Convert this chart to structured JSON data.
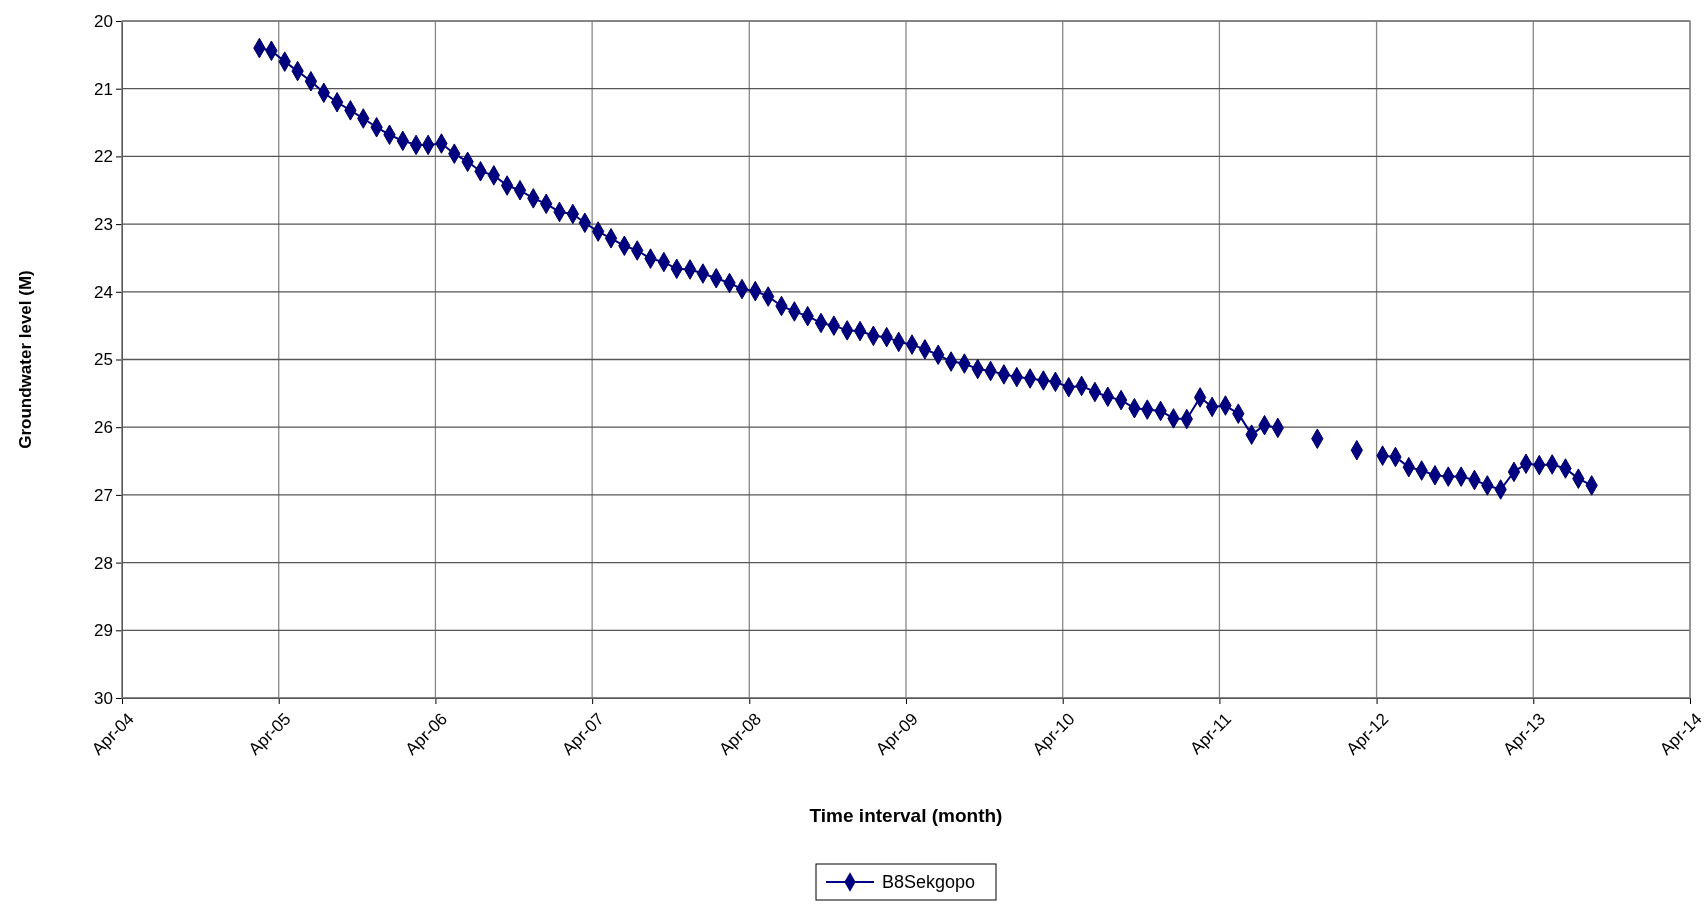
{
  "chart_data": {
    "type": "line",
    "xlabel": "Time interval (month)",
    "ylabel": "Groundwater level (M)",
    "x": [
      "2005-02-15",
      "2005-03-15",
      "2005-04-15",
      "2005-05-15",
      "2005-06-15",
      "2005-07-15",
      "2005-08-15",
      "2005-09-15",
      "2005-10-15",
      "2005-11-15",
      "2005-12-15",
      "2006-01-15",
      "2006-02-15",
      "2006-03-15",
      "2006-04-15",
      "2006-05-15",
      "2006-06-15",
      "2006-07-15",
      "2006-08-15",
      "2006-09-15",
      "2006-10-15",
      "2006-11-15",
      "2006-12-15",
      "2007-01-15",
      "2007-02-15",
      "2007-03-15",
      "2007-04-15",
      "2007-05-15",
      "2007-06-15",
      "2007-07-15",
      "2007-08-15",
      "2007-09-15",
      "2007-10-15",
      "2007-11-15",
      "2007-12-15",
      "2008-01-15",
      "2008-02-15",
      "2008-03-15",
      "2008-04-15",
      "2008-05-15",
      "2008-06-15",
      "2008-07-15",
      "2008-08-15",
      "2008-09-15",
      "2008-10-15",
      "2008-11-15",
      "2008-12-15",
      "2009-01-15",
      "2009-02-15",
      "2009-03-15",
      "2009-04-15",
      "2009-05-15",
      "2009-06-15",
      "2009-07-15",
      "2009-08-15",
      "2009-09-15",
      "2009-10-15",
      "2009-11-15",
      "2009-12-15",
      "2010-01-15",
      "2010-02-15",
      "2010-03-15",
      "2010-04-15",
      "2010-05-15",
      "2010-06-15",
      "2010-07-15",
      "2010-08-15",
      "2010-09-15",
      "2010-10-15",
      "2010-11-15",
      "2010-12-15",
      "2011-01-15",
      "2011-02-15",
      "2011-03-15",
      "2011-04-15",
      "2011-05-15",
      "2011-06-15",
      "2011-07-15",
      "2011-08-15",
      "2011-09-15",
      "2011-10-15",
      "2011-11-15",
      "2011-12-15",
      "2012-01-15",
      "2012-02-15",
      "2012-03-15",
      "2012-04-15",
      "2012-05-15",
      "2012-06-15",
      "2012-07-15",
      "2012-08-15",
      "2012-09-15",
      "2012-10-15",
      "2012-11-15",
      "2012-12-15",
      "2013-01-15",
      "2013-02-15",
      "2013-03-15",
      "2013-04-15",
      "2013-05-15",
      "2013-06-15",
      "2013-07-15",
      "2013-08-15"
    ],
    "series": [
      {
        "name": "B8Sekgopo",
        "color": "#000080",
        "values": [
          20.4,
          20.44,
          20.6,
          20.74,
          20.89,
          21.06,
          21.2,
          21.32,
          21.44,
          21.57,
          21.68,
          21.77,
          21.83,
          21.83,
          21.81,
          21.96,
          22.08,
          22.22,
          22.28,
          22.43,
          22.5,
          22.62,
          22.7,
          22.82,
          22.85,
          22.98,
          23.11,
          23.21,
          23.32,
          23.39,
          23.51,
          23.56,
          23.66,
          23.67,
          23.73,
          23.8,
          23.87,
          23.96,
          23.99,
          24.07,
          24.21,
          24.29,
          24.36,
          24.46,
          24.5,
          24.57,
          24.58,
          24.65,
          24.67,
          24.74,
          24.78,
          24.85,
          24.93,
          25.03,
          25.06,
          25.14,
          25.17,
          25.22,
          25.26,
          25.28,
          25.31,
          25.33,
          25.41,
          25.39,
          25.48,
          25.55,
          25.6,
          25.72,
          25.74,
          25.76,
          25.87,
          25.88,
          25.56,
          25.7,
          25.68,
          25.8,
          26.11,
          25.97,
          26.01,
          null,
          null,
          26.17,
          null,
          null,
          26.34,
          null,
          26.42,
          26.44,
          26.59,
          26.64,
          26.71,
          26.73,
          26.73,
          26.78,
          26.86,
          26.92,
          26.66,
          26.54,
          26.56,
          26.55,
          26.61,
          26.76,
          26.86
        ]
      }
    ],
    "xlim": [
      "2004-04-01",
      "2014-04-01"
    ],
    "xticks": [
      {
        "value": "2004-04-01",
        "label": "Apr-04"
      },
      {
        "value": "2005-04-01",
        "label": "Apr-05"
      },
      {
        "value": "2006-04-01",
        "label": "Apr-06"
      },
      {
        "value": "2007-04-01",
        "label": "Apr-07"
      },
      {
        "value": "2008-04-01",
        "label": "Apr-08"
      },
      {
        "value": "2009-04-01",
        "label": "Apr-09"
      },
      {
        "value": "2010-04-01",
        "label": "Apr-10"
      },
      {
        "value": "2011-04-01",
        "label": "Apr-11"
      },
      {
        "value": "2012-04-01",
        "label": "Apr-12"
      },
      {
        "value": "2013-04-01",
        "label": "Apr-13"
      },
      {
        "value": "2014-04-01",
        "label": "Apr-14"
      }
    ],
    "ylim": [
      30,
      20
    ],
    "yticks": [
      20,
      21,
      22,
      23,
      24,
      25,
      26,
      27,
      28,
      29,
      30
    ],
    "grid": true,
    "legend": "bottom",
    "marker": "diamond",
    "line_style": "solid"
  }
}
